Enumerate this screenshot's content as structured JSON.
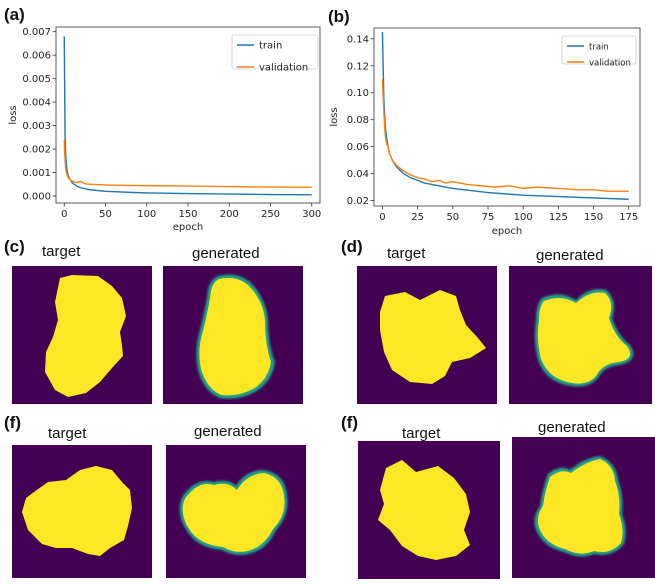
{
  "panels": [
    {
      "label": "(a)"
    },
    {
      "label": "(b)"
    },
    {
      "label": "(c)"
    },
    {
      "label": "(d)"
    },
    {
      "label": "(f)"
    },
    {
      "label": "(f)"
    }
  ],
  "image_titles": {
    "target": "target",
    "generated": "generated"
  },
  "colors": {
    "train": "#1f77b4",
    "validation": "#ff7f0e",
    "background": "#440154",
    "shape": "#fde725",
    "edge": "#21a389"
  },
  "chart_data": [
    {
      "type": "line",
      "title": "",
      "xlabel": "epoch",
      "ylabel": "loss",
      "xlim": [
        -10,
        310
      ],
      "ylim": [
        -0.0003,
        0.0072
      ],
      "xticks": [
        0,
        50,
        100,
        150,
        200,
        250,
        300
      ],
      "yticks": [
        0.0,
        0.001,
        0.002,
        0.003,
        0.004,
        0.005,
        0.006,
        0.007
      ],
      "ytick_labels": [
        "0.000",
        "0.001",
        "0.002",
        "0.003",
        "0.004",
        "0.005",
        "0.006",
        "0.007"
      ],
      "legend_placement": "top-right",
      "series": [
        {
          "name": "train",
          "color": "#1f77b4",
          "x": [
            0,
            1,
            2,
            3,
            4,
            5,
            7,
            10,
            15,
            20,
            30,
            50,
            75,
            100,
            150,
            200,
            250,
            300
          ],
          "y": [
            0.0068,
            0.0025,
            0.0016,
            0.0012,
            0.00098,
            0.00085,
            0.0007,
            0.00055,
            0.00042,
            0.00035,
            0.00027,
            0.0002,
            0.00016,
            0.00013,
            0.0001,
            8e-05,
            6e-05,
            5e-05
          ]
        },
        {
          "name": "validation",
          "color": "#ff7f0e",
          "x": [
            0,
            1,
            2,
            3,
            4,
            5,
            7,
            10,
            15,
            20,
            25,
            30,
            50,
            75,
            100,
            150,
            200,
            250,
            300
          ],
          "y": [
            0.0024,
            0.0015,
            0.0011,
            0.00095,
            0.00085,
            0.00078,
            0.0007,
            0.00062,
            0.00057,
            0.00062,
            0.00052,
            0.0005,
            0.00047,
            0.00045,
            0.00044,
            0.00042,
            0.0004,
            0.00038,
            0.00037
          ]
        }
      ]
    },
    {
      "type": "line",
      "title": "",
      "xlabel": "epoch",
      "ylabel": "loss",
      "xlim": [
        -6,
        183
      ],
      "ylim": [
        0.016,
        0.148
      ],
      "xticks": [
        0,
        25,
        50,
        75,
        100,
        125,
        150,
        175
      ],
      "yticks": [
        0.02,
        0.04,
        0.06,
        0.08,
        0.1,
        0.12,
        0.14
      ],
      "ytick_labels": [
        "0.02",
        "0.04",
        "0.06",
        "0.08",
        "0.10",
        "0.12",
        "0.14"
      ],
      "legend_placement": "top-right",
      "series": [
        {
          "name": "train",
          "color": "#1f77b4",
          "x": [
            0,
            1,
            2,
            3,
            4,
            5,
            7,
            10,
            15,
            20,
            25,
            30,
            40,
            50,
            75,
            100,
            125,
            150,
            175
          ],
          "y": [
            0.145,
            0.095,
            0.075,
            0.066,
            0.06,
            0.055,
            0.05,
            0.045,
            0.04,
            0.037,
            0.035,
            0.033,
            0.031,
            0.029,
            0.026,
            0.024,
            0.023,
            0.022,
            0.021
          ]
        },
        {
          "name": "validation",
          "color": "#ff7f0e",
          "x": [
            0,
            1,
            2,
            3,
            4,
            5,
            7,
            10,
            15,
            20,
            25,
            30,
            35,
            40,
            45,
            50,
            60,
            70,
            80,
            90,
            100,
            110,
            125,
            140,
            150,
            160,
            175
          ],
          "y": [
            0.11,
            0.085,
            0.068,
            0.062,
            0.06,
            0.055,
            0.05,
            0.046,
            0.042,
            0.039,
            0.037,
            0.036,
            0.034,
            0.035,
            0.033,
            0.034,
            0.032,
            0.031,
            0.03,
            0.031,
            0.029,
            0.03,
            0.029,
            0.028,
            0.028,
            0.027,
            0.027
          ]
        }
      ]
    }
  ]
}
